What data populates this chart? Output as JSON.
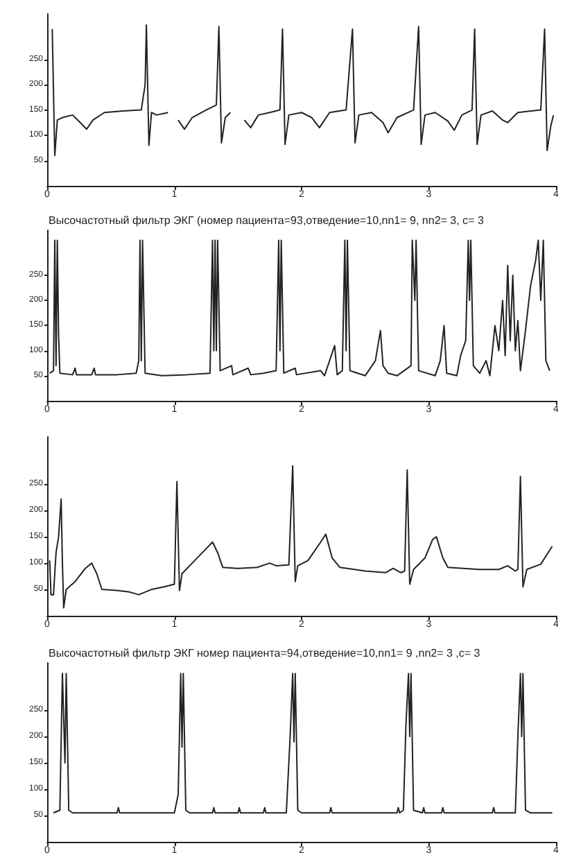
{
  "chart_data": [
    {
      "type": "line",
      "color": "#222222",
      "xlim": [
        0,
        4
      ],
      "ylim": [
        0,
        340
      ],
      "xticks": [
        0,
        1,
        2,
        3,
        4
      ],
      "yticks": [
        50,
        100,
        150,
        200,
        250
      ],
      "grid": false,
      "marker": "none",
      "x": [
        0.04,
        0.06,
        0.08,
        0.12,
        0.2,
        0.26,
        0.31,
        0.36,
        0.45,
        0.6,
        0.74,
        0.77,
        0.78,
        0.8,
        0.82,
        0.86,
        0.95,
        1.0,
        1.03,
        1.08,
        1.14,
        1.25,
        1.33,
        1.35,
        1.37,
        1.4,
        1.44,
        1.48,
        1.55,
        1.6,
        1.66,
        1.75,
        1.83,
        1.85,
        1.87,
        1.9,
        2.0,
        2.08,
        2.14,
        2.22,
        2.35,
        2.4,
        2.42,
        2.45,
        2.55,
        2.64,
        2.68,
        2.75,
        2.88,
        2.92,
        2.94,
        2.97,
        3.05,
        3.15,
        3.2,
        3.26,
        3.34,
        3.36,
        3.38,
        3.41,
        3.5,
        3.58,
        3.62,
        3.7,
        3.88,
        3.91,
        3.93,
        3.96,
        3.98
      ],
      "values": [
        310,
        60,
        130,
        135,
        140,
        125,
        112,
        130,
        145,
        148,
        150,
        200,
        318,
        80,
        145,
        140,
        145,
        null,
        130,
        112,
        135,
        150,
        160,
        315,
        85,
        135,
        145,
        null,
        130,
        115,
        140,
        145,
        150,
        310,
        82,
        140,
        145,
        135,
        115,
        145,
        150,
        310,
        85,
        140,
        145,
        125,
        105,
        135,
        150,
        315,
        82,
        140,
        145,
        128,
        110,
        140,
        150,
        310,
        82,
        140,
        148,
        130,
        125,
        145,
        150,
        310,
        70,
        120,
        140
      ]
    },
    {
      "type": "line",
      "title": "Высочастотный фильтр ЭКГ (номер пациента=93,отведение=10,nn1= 9, nn2= 3, c= 3",
      "color": "#222222",
      "xlim": [
        0,
        4
      ],
      "ylim": [
        0,
        340
      ],
      "xticks": [
        0,
        1,
        2,
        3,
        4
      ],
      "yticks": [
        50,
        100,
        150,
        200,
        250
      ],
      "grid": false,
      "marker": "none",
      "x": [
        0.02,
        0.05,
        0.06,
        0.07,
        0.08,
        0.09,
        0.1,
        0.2,
        0.22,
        0.23,
        0.35,
        0.37,
        0.38,
        0.55,
        0.7,
        0.72,
        0.73,
        0.74,
        0.75,
        0.77,
        0.9,
        1.1,
        1.28,
        1.3,
        1.31,
        1.32,
        1.33,
        1.34,
        1.36,
        1.45,
        1.46,
        1.58,
        1.6,
        1.7,
        1.8,
        1.82,
        1.83,
        1.84,
        1.86,
        1.95,
        1.96,
        2.15,
        2.18,
        2.26,
        2.28,
        2.32,
        2.34,
        2.35,
        2.36,
        2.38,
        2.5,
        2.58,
        2.62,
        2.64,
        2.68,
        2.75,
        2.86,
        2.87,
        2.89,
        2.9,
        2.92,
        3.05,
        3.09,
        3.12,
        3.14,
        3.22,
        3.25,
        3.29,
        3.31,
        3.32,
        3.33,
        3.35,
        3.4,
        3.45,
        3.48,
        3.52,
        3.55,
        3.58,
        3.6,
        3.62,
        3.64,
        3.66,
        3.68,
        3.7,
        3.72,
        3.76,
        3.8,
        3.84,
        3.86,
        3.88,
        3.9,
        3.92,
        3.95
      ],
      "values": [
        55,
        60,
        320,
        70,
        320,
        130,
        55,
        52,
        65,
        52,
        52,
        65,
        52,
        52,
        55,
        80,
        320,
        80,
        320,
        55,
        50,
        52,
        55,
        320,
        100,
        320,
        100,
        320,
        60,
        70,
        52,
        65,
        52,
        55,
        60,
        320,
        100,
        320,
        55,
        65,
        52,
        60,
        50,
        110,
        52,
        60,
        320,
        100,
        320,
        60,
        50,
        80,
        140,
        70,
        55,
        50,
        70,
        320,
        200,
        320,
        60,
        50,
        80,
        150,
        55,
        50,
        90,
        120,
        320,
        200,
        320,
        70,
        55,
        80,
        50,
        150,
        100,
        200,
        90,
        270,
        120,
        250,
        100,
        160,
        60,
        140,
        230,
        280,
        320,
        200,
        320,
        80,
        60
      ]
    },
    {
      "type": "line",
      "color": "#222222",
      "xlim": [
        0,
        4
      ],
      "ylim": [
        0,
        340
      ],
      "xticks": [
        0,
        1,
        2,
        3,
        4
      ],
      "yticks": [
        50,
        100,
        150,
        200,
        250
      ],
      "grid": false,
      "marker": "none",
      "x": [
        0.02,
        0.03,
        0.05,
        0.07,
        0.09,
        0.11,
        0.12,
        0.13,
        0.15,
        0.22,
        0.3,
        0.35,
        0.39,
        0.43,
        0.55,
        0.65,
        0.72,
        0.82,
        0.92,
        1.0,
        1.02,
        1.04,
        1.06,
        1.14,
        1.24,
        1.3,
        1.34,
        1.38,
        1.5,
        1.65,
        1.75,
        1.8,
        1.9,
        1.93,
        1.95,
        1.97,
        2.05,
        2.15,
        2.19,
        2.24,
        2.3,
        2.5,
        2.66,
        2.72,
        2.78,
        2.81,
        2.83,
        2.85,
        2.88,
        2.97,
        3.03,
        3.06,
        3.11,
        3.15,
        3.4,
        3.55,
        3.62,
        3.68,
        3.7,
        3.72,
        3.74,
        3.77,
        3.88,
        3.97
      ],
      "values": [
        105,
        40,
        40,
        120,
        150,
        222,
        100,
        15,
        50,
        65,
        90,
        100,
        80,
        50,
        48,
        45,
        40,
        50,
        55,
        60,
        255,
        48,
        80,
        100,
        125,
        140,
        120,
        92,
        90,
        92,
        100,
        95,
        97,
        285,
        65,
        95,
        105,
        140,
        155,
        110,
        92,
        85,
        82,
        90,
        82,
        85,
        277,
        60,
        88,
        110,
        145,
        150,
        110,
        92,
        88,
        88,
        95,
        85,
        88,
        265,
        55,
        88,
        98,
        132
      ]
    },
    {
      "type": "line",
      "title": "Высочастотный фильтр ЭКГ номер пациента=94,отведение=10,nn1= 9 ,nn2= 3 ,c= 3",
      "color": "#222222",
      "xlim": [
        0,
        4
      ],
      "ylim": [
        0,
        340
      ],
      "xticks": [
        0,
        1,
        2,
        3,
        4
      ],
      "yticks": [
        50,
        100,
        150,
        200,
        250
      ],
      "grid": false,
      "marker": "none",
      "x": [
        0.05,
        0.1,
        0.12,
        0.14,
        0.15,
        0.17,
        0.2,
        0.55,
        0.56,
        0.57,
        1.0,
        1.03,
        1.05,
        1.06,
        1.07,
        1.09,
        1.12,
        1.3,
        1.31,
        1.32,
        1.5,
        1.51,
        1.52,
        1.7,
        1.71,
        1.72,
        1.88,
        1.91,
        1.93,
        1.94,
        1.95,
        1.97,
        2.0,
        2.22,
        2.23,
        2.24,
        2.75,
        2.76,
        2.77,
        2.8,
        2.82,
        2.84,
        2.85,
        2.86,
        2.88,
        2.95,
        2.96,
        2.97,
        3.1,
        3.11,
        3.12,
        3.5,
        3.51,
        3.52,
        3.68,
        3.7,
        3.72,
        3.73,
        3.74,
        3.76,
        3.8,
        3.97
      ],
      "values": [
        55,
        60,
        320,
        150,
        320,
        60,
        55,
        55,
        65,
        55,
        55,
        90,
        320,
        180,
        320,
        60,
        55,
        55,
        65,
        55,
        55,
        65,
        55,
        55,
        65,
        55,
        55,
        200,
        320,
        190,
        320,
        60,
        55,
        55,
        65,
        55,
        55,
        65,
        55,
        60,
        220,
        320,
        200,
        320,
        60,
        55,
        65,
        55,
        55,
        65,
        55,
        55,
        65,
        55,
        55,
        200,
        320,
        200,
        320,
        60,
        55,
        55
      ]
    }
  ]
}
